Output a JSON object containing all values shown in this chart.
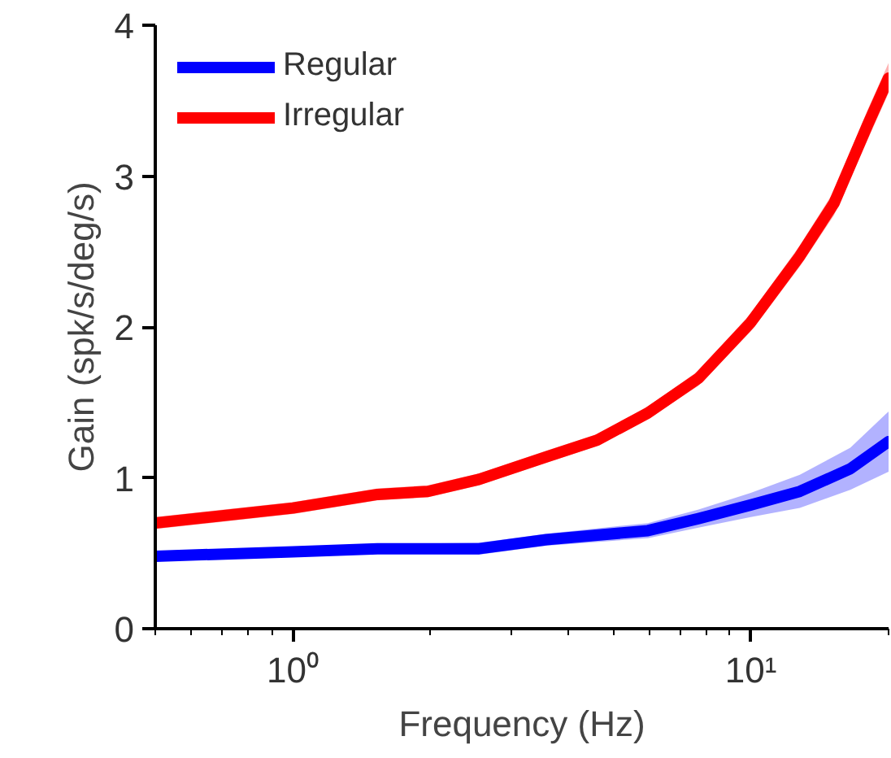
{
  "chart_data": {
    "type": "line",
    "xlabel": "Frequency (Hz)",
    "ylabel": "Gain (spk/s/deg/s)",
    "log": "x",
    "xlim": [
      0.5,
      20
    ],
    "xticks": [
      {
        "value": 1,
        "label": "10⁰"
      },
      {
        "value": 10,
        "label": "10¹"
      }
    ],
    "ylim": [
      0,
      4
    ],
    "yticks": [
      0,
      1,
      2,
      3,
      4
    ],
    "grid": false,
    "legend": "top left",
    "marker": "none",
    "line_style": "solid",
    "series": [
      {
        "name": "Regular",
        "color": "#0000ff",
        "x": [
          0.5,
          1,
          1.53,
          2.55,
          3.58,
          5.96,
          7.69,
          10,
          12.8,
          16.5,
          20
        ],
        "values": [
          0.48,
          0.51,
          0.53,
          0.53,
          0.59,
          0.65,
          0.73,
          0.82,
          0.91,
          1.06,
          1.24
        ],
        "lower": [
          0.45,
          0.48,
          0.5,
          0.49,
          0.55,
          0.6,
          0.67,
          0.74,
          0.8,
          0.92,
          1.04
        ],
        "upper": [
          0.51,
          0.54,
          0.56,
          0.57,
          0.63,
          0.7,
          0.79,
          0.9,
          1.02,
          1.2,
          1.44
        ]
      },
      {
        "name": "Irregular",
        "color": "#ff0000",
        "x": [
          0.5,
          1,
          1.53,
          1.97,
          2.55,
          3.58,
          4.62,
          5.96,
          7.69,
          10,
          12.8,
          15.2,
          18.0,
          20
        ],
        "values": [
          0.7,
          0.8,
          0.89,
          0.91,
          0.99,
          1.14,
          1.25,
          1.43,
          1.66,
          2.03,
          2.47,
          2.82,
          3.34,
          3.65
        ],
        "lower": [
          0.66,
          0.76,
          0.85,
          0.87,
          0.95,
          1.1,
          1.21,
          1.39,
          1.61,
          1.97,
          2.4,
          2.74,
          3.24,
          3.55
        ],
        "upper": [
          0.74,
          0.84,
          0.93,
          0.95,
          1.03,
          1.18,
          1.29,
          1.47,
          1.71,
          2.09,
          2.54,
          2.9,
          3.44,
          3.75
        ]
      }
    ]
  }
}
